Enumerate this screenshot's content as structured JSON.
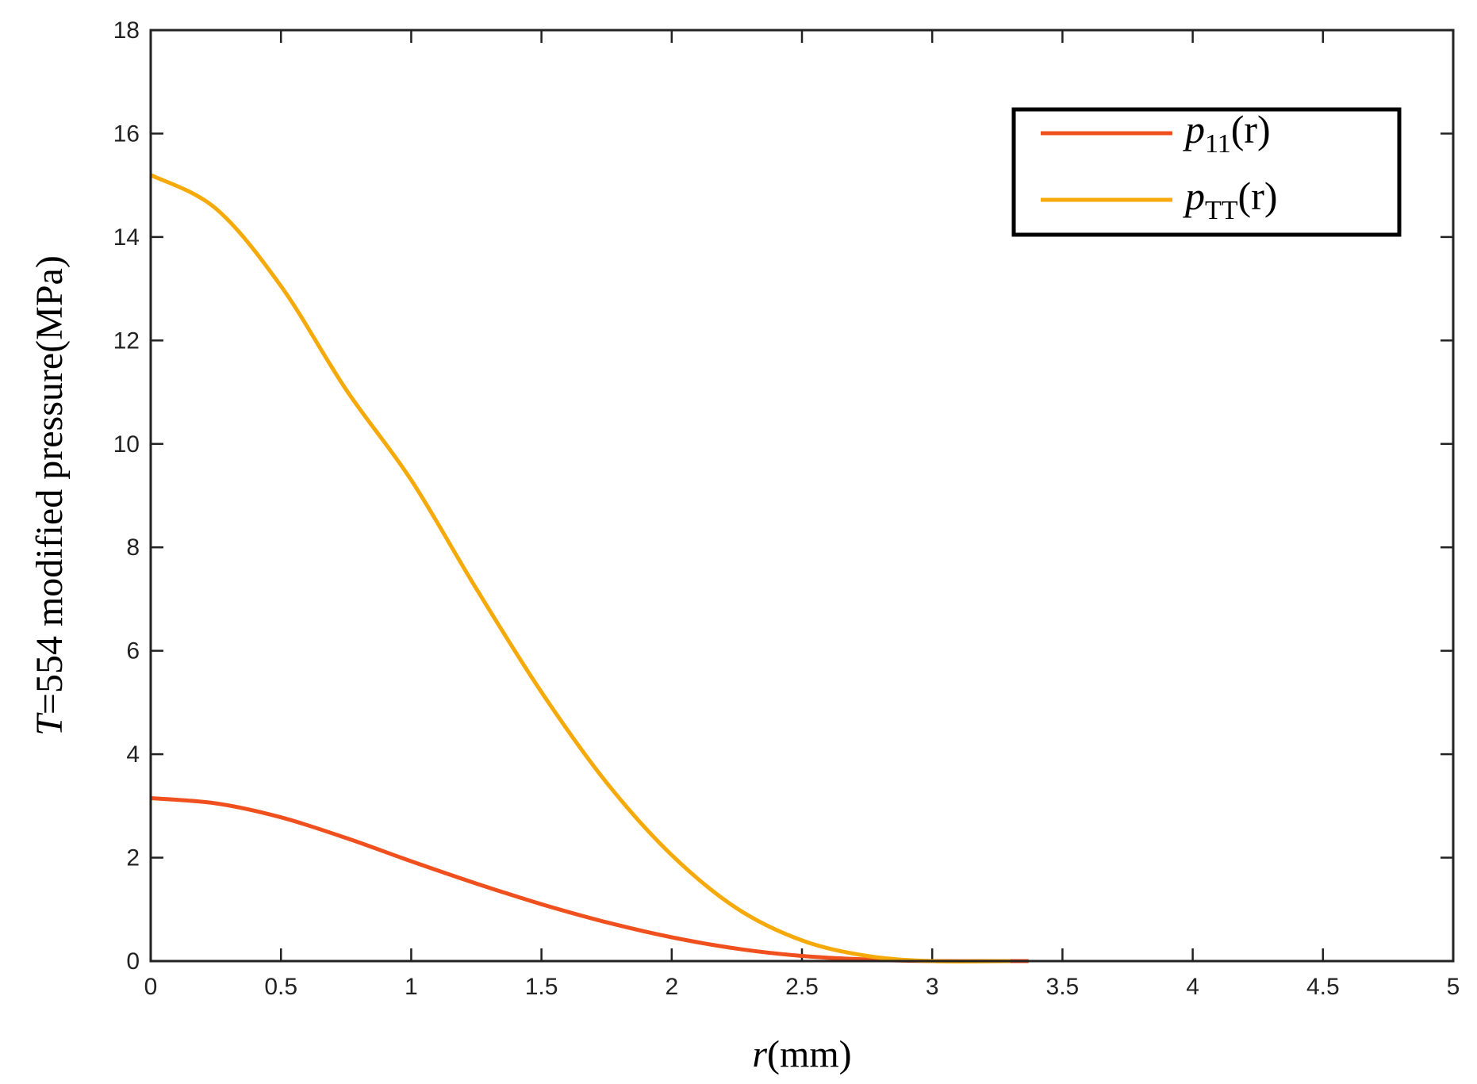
{
  "chart_data": {
    "type": "line",
    "xlabel": {
      "italic": "r",
      "rest": "(mm)"
    },
    "ylabel": {
      "italic": "T",
      "rest": "=554 modified pressure(MPa)"
    },
    "xlim": [
      0,
      5
    ],
    "ylim": [
      0,
      18
    ],
    "xticks": [
      0,
      0.5,
      1,
      1.5,
      2,
      2.5,
      3,
      3.5,
      4,
      4.5,
      5
    ],
    "xtick_labels": [
      "0",
      "0.5",
      "1",
      "1.5",
      "2",
      "2.5",
      "3",
      "3.5",
      "4",
      "4.5",
      "5"
    ],
    "yticks": [
      0,
      2,
      4,
      6,
      8,
      10,
      12,
      14,
      16,
      18
    ],
    "ytick_labels": [
      "0",
      "2",
      "4",
      "6",
      "8",
      "10",
      "12",
      "14",
      "16",
      "18"
    ],
    "grid": false,
    "legend_position": "top-right",
    "series": [
      {
        "name": "p11(r)",
        "legend": {
          "base": "p",
          "sub": "11",
          "suffix": "(r)"
        },
        "color": "#f0501e",
        "x": [
          0,
          0.25,
          0.5,
          0.75,
          1.0,
          1.25,
          1.5,
          1.75,
          2.0,
          2.25,
          2.5,
          2.75,
          3.0,
          3.3,
          3.37
        ],
        "y": [
          3.15,
          3.05,
          2.78,
          2.38,
          1.93,
          1.5,
          1.1,
          0.75,
          0.46,
          0.24,
          0.1,
          0.03,
          0.0,
          0.0,
          0.0
        ]
      },
      {
        "name": "pTT(r)",
        "legend": {
          "base": "p",
          "sub": "TT",
          "suffix": "(r)"
        },
        "color": "#f5aa0a",
        "x": [
          0,
          0.25,
          0.5,
          0.75,
          1.0,
          1.25,
          1.5,
          1.75,
          2.0,
          2.25,
          2.5,
          2.75,
          3.0,
          3.3
        ],
        "y": [
          15.2,
          14.55,
          13.05,
          11.05,
          9.3,
          7.2,
          5.2,
          3.45,
          2.05,
          1.02,
          0.4,
          0.1,
          0.0,
          0.0
        ]
      }
    ]
  }
}
